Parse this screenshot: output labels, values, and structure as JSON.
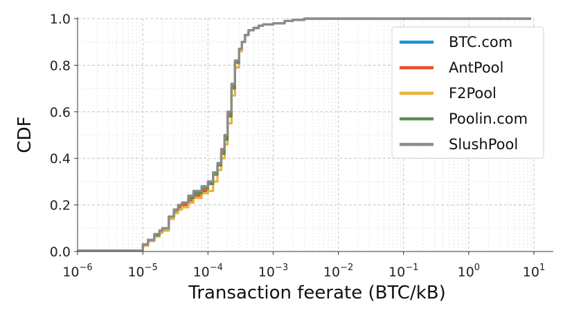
{
  "chart_data": {
    "type": "line",
    "xlabel": "Transaction feerate (BTC/kB)",
    "ylabel": "CDF",
    "xscale": "log",
    "xlim": [
      1e-06,
      10
    ],
    "ylim": [
      0,
      1.0
    ],
    "grid": true,
    "legend_position": "top-right",
    "x_ticks": [
      {
        "value": 1e-06,
        "base": "10",
        "exp": "−6"
      },
      {
        "value": 1e-05,
        "base": "10",
        "exp": "−5"
      },
      {
        "value": 0.0001,
        "base": "10",
        "exp": "−4"
      },
      {
        "value": 0.001,
        "base": "10",
        "exp": "−3"
      },
      {
        "value": 0.01,
        "base": "10",
        "exp": "−2"
      },
      {
        "value": 0.1,
        "base": "10",
        "exp": "−1"
      },
      {
        "value": 1,
        "base": "10",
        "exp": "0"
      },
      {
        "value": 10,
        "base": "10",
        "exp": "1"
      }
    ],
    "y_ticks": [
      {
        "value": 0.0,
        "label": "0.0"
      },
      {
        "value": 0.2,
        "label": "0.2"
      },
      {
        "value": 0.4,
        "label": "0.4"
      },
      {
        "value": 0.6,
        "label": "0.6"
      },
      {
        "value": 0.8,
        "label": "0.8"
      },
      {
        "value": 1.0,
        "label": "1.0"
      }
    ],
    "series": [
      {
        "name": "BTC.com",
        "color": "#1f8fd6",
        "x": [
          1e-06,
          9.5e-06,
          1e-05,
          1.2e-05,
          1.5e-05,
          1.8e-05,
          2e-05,
          2.5e-05,
          3e-05,
          3.5e-05,
          4e-05,
          5e-05,
          6e-05,
          8e-05,
          0.0001,
          0.00012,
          0.00014,
          0.00016,
          0.00018,
          0.0002,
          0.00023,
          0.00026,
          0.0003,
          0.00033,
          0.00037,
          0.00042,
          0.0005,
          0.0006,
          0.0007,
          0.001,
          0.0015,
          0.002,
          0.003,
          0.01,
          0.1,
          1,
          9
        ],
        "y": [
          0.004,
          0.004,
          0.03,
          0.05,
          0.07,
          0.09,
          0.1,
          0.15,
          0.18,
          0.2,
          0.21,
          0.23,
          0.25,
          0.27,
          0.3,
          0.34,
          0.38,
          0.44,
          0.5,
          0.6,
          0.72,
          0.82,
          0.87,
          0.9,
          0.93,
          0.95,
          0.96,
          0.97,
          0.975,
          0.98,
          0.99,
          0.995,
          1.0,
          1.0,
          1.0,
          1.0,
          1.0
        ]
      },
      {
        "name": "AntPool",
        "color": "#ee4a2c",
        "x": [
          1e-06,
          9.5e-06,
          1e-05,
          1.2e-05,
          1.5e-05,
          1.8e-05,
          2e-05,
          2.5e-05,
          3e-05,
          3.5e-05,
          4e-05,
          5e-05,
          6e-05,
          8e-05,
          0.0001,
          0.00012,
          0.00014,
          0.00016,
          0.00018,
          0.0002,
          0.00023,
          0.00026,
          0.0003,
          0.00033,
          0.00037,
          0.00042,
          0.0005,
          0.0006,
          0.0007,
          0.001,
          0.0015,
          0.002,
          0.003,
          0.01,
          0.1,
          1,
          9
        ],
        "y": [
          0.004,
          0.004,
          0.025,
          0.045,
          0.065,
          0.08,
          0.09,
          0.14,
          0.17,
          0.19,
          0.2,
          0.22,
          0.24,
          0.26,
          0.29,
          0.33,
          0.37,
          0.43,
          0.49,
          0.59,
          0.71,
          0.82,
          0.87,
          0.9,
          0.93,
          0.95,
          0.96,
          0.97,
          0.975,
          0.98,
          0.99,
          0.995,
          1.0,
          1.0,
          1.0,
          1.0,
          1.0
        ]
      },
      {
        "name": "F2Pool",
        "color": "#e8b43a",
        "x": [
          1e-06,
          9.5e-06,
          1e-05,
          1.2e-05,
          1.5e-05,
          1.8e-05,
          2e-05,
          2.5e-05,
          3e-05,
          3.5e-05,
          4e-05,
          5e-05,
          6e-05,
          8e-05,
          0.0001,
          0.00012,
          0.00014,
          0.00016,
          0.00018,
          0.0002,
          0.00023,
          0.00026,
          0.0003,
          0.00033,
          0.00037,
          0.00042,
          0.0005,
          0.0006,
          0.0007,
          0.001,
          0.0015,
          0.002,
          0.003,
          0.01,
          0.1,
          1,
          9
        ],
        "y": [
          0.004,
          0.004,
          0.025,
          0.045,
          0.065,
          0.08,
          0.09,
          0.14,
          0.165,
          0.18,
          0.19,
          0.21,
          0.23,
          0.25,
          0.26,
          0.3,
          0.35,
          0.4,
          0.46,
          0.55,
          0.67,
          0.79,
          0.86,
          0.9,
          0.93,
          0.95,
          0.96,
          0.97,
          0.975,
          0.98,
          0.99,
          0.995,
          1.0,
          1.0,
          1.0,
          1.0,
          1.0
        ]
      },
      {
        "name": "Poolin.com",
        "color": "#5f8e4a",
        "x": [
          1e-06,
          9.5e-06,
          1e-05,
          1.2e-05,
          1.5e-05,
          1.8e-05,
          2e-05,
          2.5e-05,
          3e-05,
          3.5e-05,
          4e-05,
          5e-05,
          6e-05,
          8e-05,
          0.0001,
          0.00012,
          0.00014,
          0.00016,
          0.00018,
          0.0002,
          0.00023,
          0.00026,
          0.0003,
          0.00033,
          0.00037,
          0.00042,
          0.0005,
          0.0006,
          0.0007,
          0.001,
          0.0015,
          0.002,
          0.003,
          0.01,
          0.1,
          1,
          9
        ],
        "y": [
          0.004,
          0.004,
          0.03,
          0.05,
          0.07,
          0.09,
          0.1,
          0.15,
          0.18,
          0.2,
          0.21,
          0.23,
          0.25,
          0.27,
          0.29,
          0.33,
          0.37,
          0.42,
          0.48,
          0.58,
          0.7,
          0.81,
          0.87,
          0.9,
          0.93,
          0.95,
          0.96,
          0.97,
          0.975,
          0.98,
          0.99,
          0.995,
          1.0,
          1.0,
          1.0,
          1.0,
          1.0
        ]
      },
      {
        "name": "SlushPool",
        "color": "#8c8c8c",
        "x": [
          1e-06,
          9.5e-06,
          1e-05,
          1.2e-05,
          1.5e-05,
          1.8e-05,
          2e-05,
          2.5e-05,
          3e-05,
          3.5e-05,
          4e-05,
          5e-05,
          6e-05,
          8e-05,
          0.0001,
          0.00012,
          0.00014,
          0.00016,
          0.00018,
          0.0002,
          0.00023,
          0.00026,
          0.0003,
          0.00033,
          0.00037,
          0.00042,
          0.0005,
          0.0006,
          0.0007,
          0.001,
          0.0015,
          0.002,
          0.003,
          0.01,
          0.1,
          1,
          9
        ],
        "y": [
          0.004,
          0.004,
          0.03,
          0.05,
          0.075,
          0.09,
          0.1,
          0.15,
          0.18,
          0.2,
          0.21,
          0.24,
          0.26,
          0.28,
          0.3,
          0.34,
          0.38,
          0.44,
          0.5,
          0.6,
          0.72,
          0.82,
          0.87,
          0.9,
          0.93,
          0.95,
          0.96,
          0.97,
          0.975,
          0.98,
          0.99,
          0.995,
          1.0,
          1.0,
          1.0,
          1.0,
          1.0
        ]
      }
    ]
  }
}
